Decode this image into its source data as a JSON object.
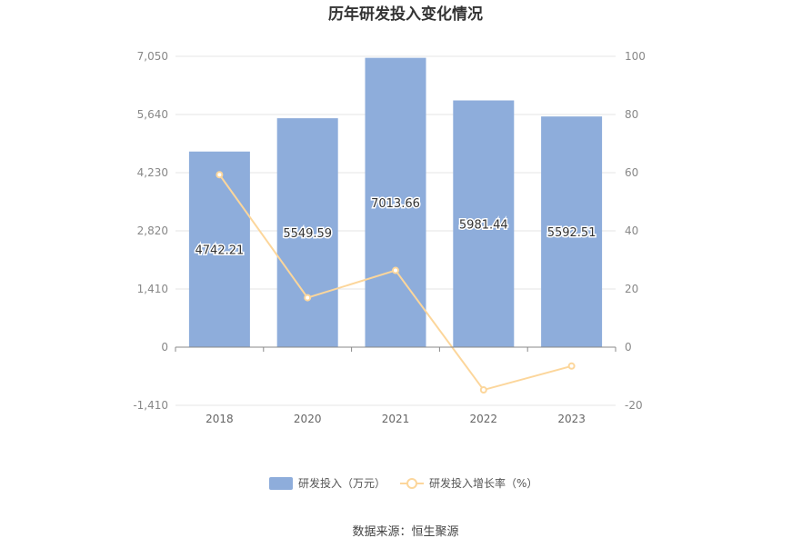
{
  "chart_data": {
    "type": "bar",
    "title": "历年研发投入变化情况",
    "categories": [
      "2018",
      "2020",
      "2021",
      "2022",
      "2023"
    ],
    "series": [
      {
        "name": "研发投入（万元）",
        "type": "bar",
        "axis": "left",
        "color": "#8eaddb",
        "values": [
          4742.21,
          5549.59,
          7013.66,
          5981.44,
          5592.51
        ],
        "labels": [
          "4742.21",
          "5549.59",
          "7013.66",
          "5981.44",
          "5592.51"
        ]
      },
      {
        "name": "研发投入增长率（%）",
        "type": "line",
        "axis": "right",
        "color": "#fcd69b",
        "values": [
          59.3,
          17.0,
          26.4,
          -14.7,
          -6.5
        ]
      }
    ],
    "y_left": {
      "ylim": [
        -1410,
        7050
      ],
      "ticks": [
        -1410,
        0,
        1410,
        2820,
        4230,
        5640,
        7050
      ],
      "tick_labels": [
        "-1,410",
        "0",
        "1,410",
        "2,820",
        "4,230",
        "5,640",
        "7,050"
      ]
    },
    "y_right": {
      "ylim": [
        -20,
        100
      ],
      "ticks": [
        -20,
        0,
        20,
        40,
        60,
        80,
        100
      ],
      "tick_labels": [
        "-20",
        "0",
        "20",
        "40",
        "60",
        "80",
        "100"
      ]
    },
    "grid": true,
    "legend_position": "bottom-center"
  },
  "source_text": "数据来源：恒生聚源"
}
